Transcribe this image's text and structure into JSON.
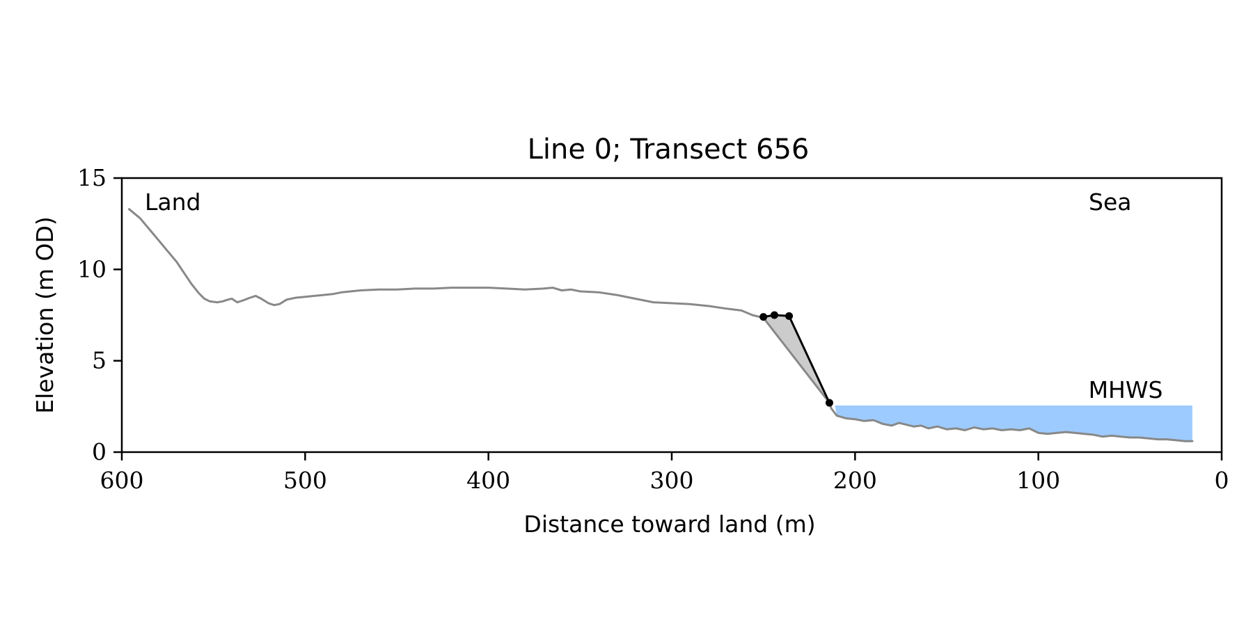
{
  "chart_data": {
    "type": "line",
    "title": "Line 0; Transect 656",
    "xlabel": "Distance toward land (m)",
    "ylabel": "Elevation (m OD)",
    "xlim": [
      600,
      0
    ],
    "ylim": [
      0,
      15
    ],
    "x_ticks": [
      600,
      500,
      400,
      300,
      200,
      100,
      0
    ],
    "y_ticks": [
      0,
      5,
      10,
      15
    ],
    "grid": false,
    "annotations": {
      "land": "Land",
      "sea": "Sea",
      "mhws_label": "MHWS"
    },
    "colors": {
      "profile": "#888888",
      "cliff_line": "#000000",
      "cliff_fill": "#cccccc",
      "mhws_fill": "#9ecbff",
      "mhws_text": "#6a9bc8"
    },
    "series": [
      {
        "kind": "profile",
        "points": [
          [
            596,
            13.3
          ],
          [
            590,
            12.8
          ],
          [
            585,
            12.2
          ],
          [
            580,
            11.6
          ],
          [
            575,
            11.0
          ],
          [
            570,
            10.4
          ],
          [
            566,
            9.8
          ],
          [
            562,
            9.2
          ],
          [
            558,
            8.7
          ],
          [
            555,
            8.4
          ],
          [
            552,
            8.25
          ],
          [
            548,
            8.2
          ],
          [
            545,
            8.25
          ],
          [
            542,
            8.35
          ],
          [
            540,
            8.4
          ],
          [
            537,
            8.2
          ],
          [
            534,
            8.3
          ],
          [
            530,
            8.45
          ],
          [
            527,
            8.55
          ],
          [
            524,
            8.4
          ],
          [
            520,
            8.15
          ],
          [
            517,
            8.05
          ],
          [
            514,
            8.1
          ],
          [
            510,
            8.35
          ],
          [
            505,
            8.45
          ],
          [
            500,
            8.5
          ],
          [
            495,
            8.55
          ],
          [
            490,
            8.6
          ],
          [
            485,
            8.65
          ],
          [
            480,
            8.75
          ],
          [
            470,
            8.85
          ],
          [
            460,
            8.9
          ],
          [
            450,
            8.9
          ],
          [
            440,
            8.95
          ],
          [
            430,
            8.95
          ],
          [
            420,
            9.0
          ],
          [
            410,
            9.0
          ],
          [
            400,
            9.0
          ],
          [
            390,
            8.95
          ],
          [
            380,
            8.9
          ],
          [
            370,
            8.95
          ],
          [
            365,
            9.0
          ],
          [
            360,
            8.85
          ],
          [
            355,
            8.9
          ],
          [
            350,
            8.8
          ],
          [
            340,
            8.75
          ],
          [
            330,
            8.6
          ],
          [
            320,
            8.4
          ],
          [
            310,
            8.2
          ],
          [
            300,
            8.15
          ],
          [
            290,
            8.1
          ],
          [
            280,
            8.0
          ],
          [
            270,
            7.85
          ],
          [
            262,
            7.75
          ],
          [
            256,
            7.5
          ],
          [
            250,
            7.35
          ]
        ]
      },
      {
        "kind": "cliff",
        "points": [
          [
            250,
            7.4
          ],
          [
            244,
            7.5
          ],
          [
            236,
            7.45
          ],
          [
            214,
            2.7
          ]
        ]
      },
      {
        "kind": "beach",
        "points": [
          [
            213,
            2.4
          ],
          [
            210,
            2.0
          ],
          [
            205,
            1.85
          ],
          [
            200,
            1.8
          ],
          [
            195,
            1.7
          ],
          [
            190,
            1.75
          ],
          [
            185,
            1.55
          ],
          [
            180,
            1.45
          ],
          [
            176,
            1.6
          ],
          [
            172,
            1.5
          ],
          [
            168,
            1.4
          ],
          [
            164,
            1.45
          ],
          [
            160,
            1.3
          ],
          [
            155,
            1.4
          ],
          [
            150,
            1.25
          ],
          [
            145,
            1.3
          ],
          [
            140,
            1.2
          ],
          [
            135,
            1.35
          ],
          [
            130,
            1.25
          ],
          [
            125,
            1.3
          ],
          [
            120,
            1.2
          ],
          [
            115,
            1.25
          ],
          [
            110,
            1.2
          ],
          [
            105,
            1.3
          ],
          [
            100,
            1.05
          ],
          [
            95,
            1.0
          ],
          [
            90,
            1.05
          ],
          [
            85,
            1.1
          ],
          [
            80,
            1.05
          ],
          [
            75,
            1.0
          ],
          [
            70,
            0.95
          ],
          [
            65,
            0.85
          ],
          [
            60,
            0.9
          ],
          [
            55,
            0.85
          ],
          [
            50,
            0.8
          ],
          [
            45,
            0.8
          ],
          [
            40,
            0.75
          ],
          [
            35,
            0.7
          ],
          [
            30,
            0.7
          ],
          [
            25,
            0.65
          ],
          [
            20,
            0.6
          ],
          [
            16,
            0.6
          ]
        ]
      }
    ],
    "cliff_area": [
      [
        250,
        7.35
      ],
      [
        214,
        2.7
      ],
      [
        236,
        7.45
      ],
      [
        244,
        7.5
      ],
      [
        250,
        7.4
      ]
    ],
    "mhws": {
      "level": 2.55,
      "x_start": 211,
      "x_end": 16
    }
  }
}
